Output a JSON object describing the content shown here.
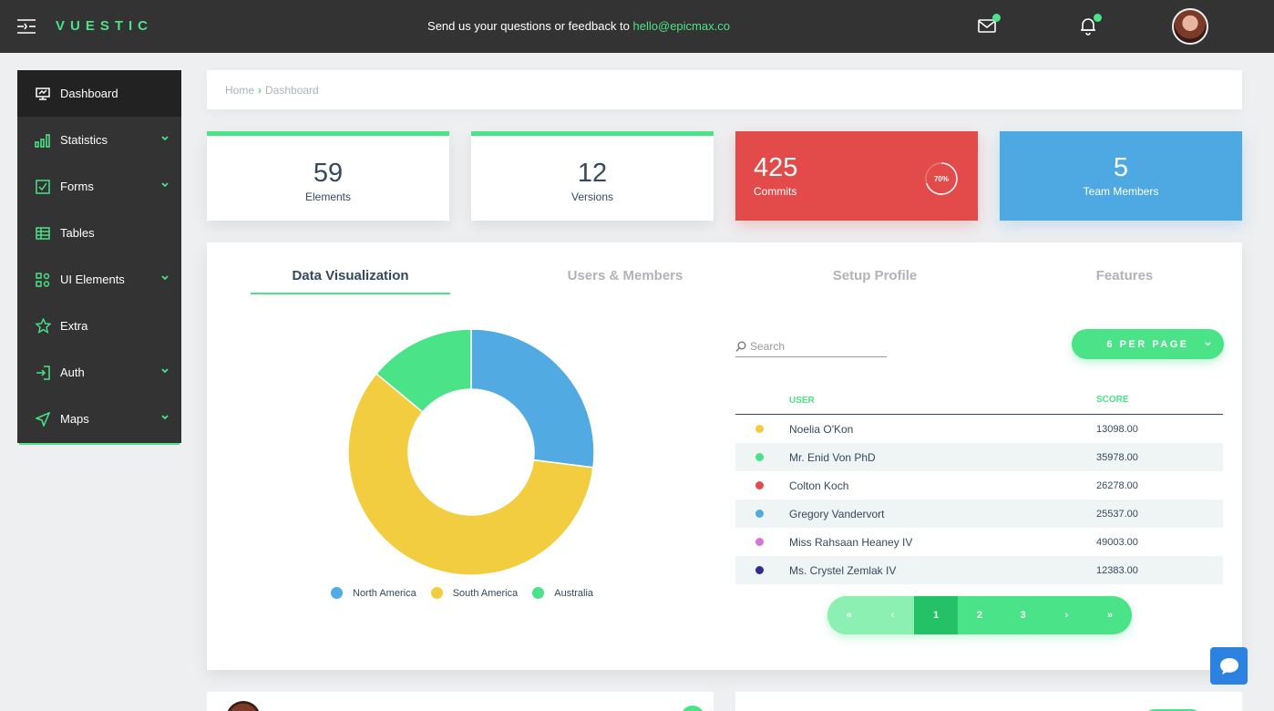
{
  "app": {
    "logo": "VUESTIC"
  },
  "topbar": {
    "feedback_text": "Send us your questions or feedback to",
    "feedback_email": "hello@epicmax.co",
    "icons": [
      "menu-toggle-icon",
      "mail-icon",
      "bell-icon"
    ]
  },
  "sidebar": {
    "items": [
      {
        "label": "Dashboard",
        "icon": "dashboard-icon",
        "active": true,
        "expandable": false
      },
      {
        "label": "Statistics",
        "icon": "statistics-icon",
        "active": false,
        "expandable": true
      },
      {
        "label": "Forms",
        "icon": "forms-icon",
        "active": false,
        "expandable": true
      },
      {
        "label": "Tables",
        "icon": "tables-icon",
        "active": false,
        "expandable": false
      },
      {
        "label": "UI Elements",
        "icon": "ui-elements-icon",
        "active": false,
        "expandable": true
      },
      {
        "label": "Extra",
        "icon": "star-icon",
        "active": false,
        "expandable": false
      },
      {
        "label": "Auth",
        "icon": "login-icon",
        "active": false,
        "expandable": true
      },
      {
        "label": "Maps",
        "icon": "navigation-icon",
        "active": false,
        "expandable": true
      }
    ]
  },
  "breadcrumb": {
    "home": "Home",
    "current": "Dashboard"
  },
  "stats": [
    {
      "value": "59",
      "label": "Elements"
    },
    {
      "value": "12",
      "label": "Versions"
    },
    {
      "value": "425",
      "label": "Commits",
      "progress_label": "70%",
      "progress": 0.7
    },
    {
      "value": "5",
      "label": "Team Members"
    }
  ],
  "tabs": [
    {
      "label": "Data Visualization",
      "active": true
    },
    {
      "label": "Users & Members",
      "active": false
    },
    {
      "label": "Setup Profile",
      "active": false
    },
    {
      "label": "Features",
      "active": false
    }
  ],
  "chart_data": {
    "type": "pie",
    "categories": [
      "North America",
      "South America",
      "Australia"
    ],
    "values": [
      27,
      59,
      14
    ],
    "colors": [
      "#52aae2",
      "#f2cd3f",
      "#4ae387"
    ]
  },
  "search": {
    "placeholder": "Search"
  },
  "per_page": {
    "label": "6 PER PAGE"
  },
  "table": {
    "headers": {
      "user": "USER",
      "score": "SCORE"
    },
    "rows": [
      {
        "name": "Noelia O'Kon",
        "score": "13098.00",
        "color": "#f2cd3f"
      },
      {
        "name": "Mr. Enid Von PhD",
        "score": "35978.00",
        "color": "#4ae387"
      },
      {
        "name": "Colton Koch",
        "score": "26278.00",
        "color": "#e34b4a"
      },
      {
        "name": "Gregory Vandervort",
        "score": "25537.00",
        "color": "#52aae2"
      },
      {
        "name": "Miss Rahsaan Heaney IV",
        "score": "49003.00",
        "color": "#d973d6"
      },
      {
        "name": "Ms. Crystel Zemlak IV",
        "score": "12383.00",
        "color": "#2b2f8f"
      }
    ]
  },
  "pagination": {
    "first": "«",
    "prev": "‹",
    "next": "›",
    "last": "»",
    "pages": [
      "1",
      "2",
      "3"
    ],
    "current": "1"
  }
}
